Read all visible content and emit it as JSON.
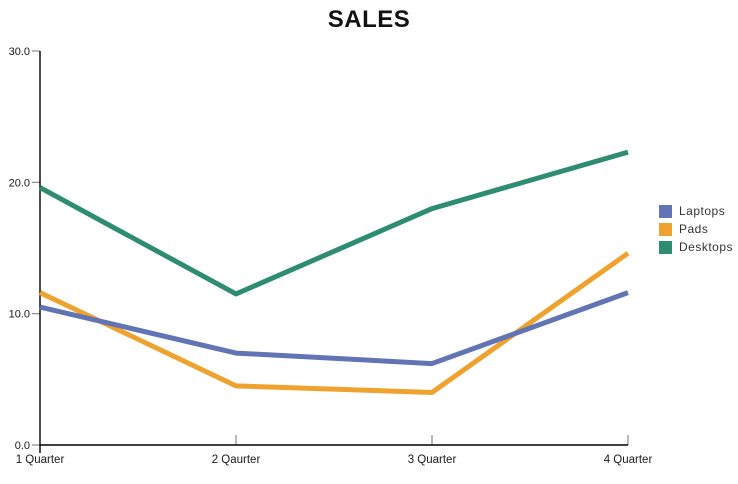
{
  "chart_data": {
    "type": "line",
    "title": "SALES",
    "categories": [
      "1 Quarter",
      "2 Qaurter",
      "3 Quarter",
      "4 Quarter"
    ],
    "series": [
      {
        "name": "Laptops",
        "color": "#6274b3",
        "values": [
          10.5,
          7.0,
          6.2,
          11.6
        ]
      },
      {
        "name": "Pads",
        "color": "#f0a22e",
        "values": [
          11.6,
          4.5,
          4.0,
          14.6
        ]
      },
      {
        "name": "Desktops",
        "color": "#2e8c70",
        "values": [
          19.6,
          11.5,
          18.0,
          22.3
        ]
      }
    ],
    "xlabel": "",
    "ylabel": "",
    "ylim": [
      0,
      30
    ],
    "yticks": [
      0,
      10,
      20,
      30
    ],
    "ytick_labels": [
      "0.0",
      "10.0",
      "20.0",
      "30.0"
    ],
    "grid": false,
    "legend_position": "right",
    "axis_color": "#000000",
    "tick_color": "#8a8a8a",
    "label_color": "#1a1a1a",
    "background": "#ffffff"
  }
}
